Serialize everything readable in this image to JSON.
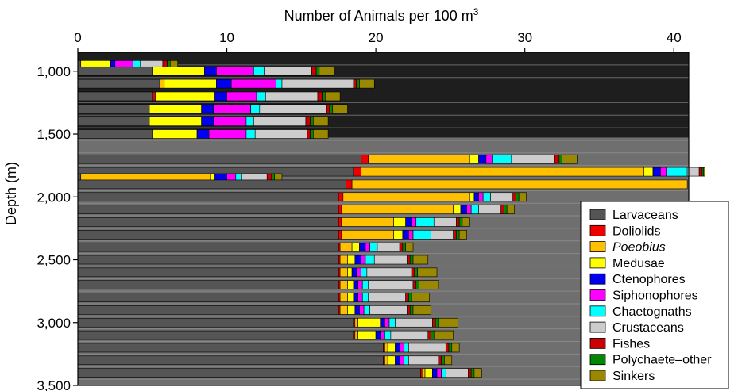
{
  "chart_data": {
    "type": "bar",
    "stacked": true,
    "orientation": "horizontal",
    "title": "",
    "xlabel": "Number of Animals per 100 m",
    "xlabel_superscript": "3",
    "ylabel": "Depth (m)",
    "xlim": [
      0,
      41
    ],
    "ylim": [
      3500,
      850
    ],
    "x_ticks": [
      0,
      10,
      20,
      30,
      40
    ],
    "y_ticks": [
      1000,
      1500,
      2000,
      2500,
      3000,
      3500
    ],
    "y_tick_labels": [
      "1,000",
      "1,500",
      "2,000",
      "2,500",
      "3,000",
      "3,500"
    ],
    "x_axis_position": "top",
    "legend_position": "bottom-right",
    "categories": [
      "Larvaceans",
      "Doliolids",
      "Poeobius",
      "Medusae",
      "Ctenophores",
      "Siphonophores",
      "Chaetognaths",
      "Crustaceans",
      "Fishes",
      "Polychaete–other",
      "Sinkers"
    ],
    "italic_categories": [
      "Poeobius"
    ],
    "colors": [
      "#555555",
      "#ee0000",
      "#ffc000",
      "#ffff00",
      "#0000ee",
      "#ff00ff",
      "#00ffff",
      "#cccccc",
      "#cc0000",
      "#008800",
      "#998800"
    ],
    "bars": [
      {
        "depth": 950,
        "values": [
          0.2,
          0,
          0,
          2.0,
          0.3,
          1.2,
          0.5,
          1.5,
          0.3,
          0.2,
          0.5
        ]
      },
      {
        "depth": 1000,
        "values": [
          5.0,
          0,
          0,
          3.5,
          0.8,
          2.5,
          0.7,
          3.2,
          0.3,
          0.2,
          1.0
        ]
      },
      {
        "depth": 1100,
        "values": [
          5.5,
          0,
          0.3,
          3.5,
          1.0,
          3.0,
          0.4,
          4.8,
          0.2,
          0.2,
          1.0
        ]
      },
      {
        "depth": 1200,
        "values": [
          5.0,
          0.2,
          0,
          4.0,
          0.8,
          2.0,
          0.6,
          3.5,
          0.3,
          0.2,
          1.0
        ]
      },
      {
        "depth": 1300,
        "values": [
          4.8,
          0,
          0,
          3.5,
          0.8,
          2.5,
          0.6,
          4.5,
          0.2,
          0.2,
          1.0
        ]
      },
      {
        "depth": 1400,
        "values": [
          4.8,
          0,
          0,
          3.5,
          0.8,
          2.2,
          0.5,
          3.5,
          0.3,
          0.2,
          1.0
        ]
      },
      {
        "depth": 1500,
        "values": [
          5.0,
          0,
          0,
          3.0,
          0.8,
          2.5,
          0.6,
          3.5,
          0.2,
          0.2,
          1.0
        ]
      },
      {
        "depth": 1700,
        "values": [
          19.0,
          0.5,
          6.8,
          0.6,
          0.5,
          0.4,
          1.3,
          2.9,
          0.3,
          0.2,
          1.0
        ]
      },
      {
        "depth": 1800,
        "values": [
          18.5,
          0.5,
          19.0,
          0.6,
          0.5,
          0.4,
          1.4,
          0.8,
          0.2,
          0.1,
          0.1
        ]
      },
      {
        "depth": 1850,
        "values": [
          0.2,
          0,
          8.7,
          0.3,
          0.8,
          0.6,
          0.4,
          1.7,
          0.3,
          0.2,
          0.5
        ]
      },
      {
        "depth": 1900,
        "values": [
          18.0,
          0.4,
          22.5,
          0,
          0,
          0,
          0,
          0,
          0,
          0,
          0
        ]
      },
      {
        "depth": 2000,
        "values": [
          17.5,
          0.3,
          8.5,
          0.3,
          0.3,
          0.3,
          0.5,
          1.5,
          0.2,
          0.2,
          0.5
        ]
      },
      {
        "depth": 2100,
        "values": [
          17.5,
          0.2,
          7.5,
          0.5,
          0.4,
          0.3,
          0.5,
          1.5,
          0.2,
          0.2,
          0.5
        ]
      },
      {
        "depth": 2200,
        "values": [
          17.5,
          0.2,
          3.5,
          0.8,
          0.4,
          0.3,
          1.2,
          1.5,
          0.2,
          0.2,
          0.5
        ]
      },
      {
        "depth": 2300,
        "values": [
          17.5,
          0.2,
          3.5,
          0.6,
          0.4,
          0.3,
          1.2,
          1.5,
          0.2,
          0.2,
          0.5
        ]
      },
      {
        "depth": 2400,
        "values": [
          17.5,
          0.1,
          0.8,
          0.5,
          0.4,
          0.3,
          0.5,
          1.5,
          0.2,
          0.2,
          0.5
        ]
      },
      {
        "depth": 2500,
        "values": [
          17.5,
          0.1,
          0.5,
          0.5,
          0.4,
          0.3,
          0.6,
          2.2,
          0.2,
          0.2,
          1.0
        ]
      },
      {
        "depth": 2600,
        "values": [
          17.5,
          0.1,
          0.5,
          0.3,
          0.3,
          0.3,
          0.4,
          3.0,
          0.2,
          0.2,
          1.3
        ]
      },
      {
        "depth": 2700,
        "values": [
          17.5,
          0.1,
          0.5,
          0.4,
          0.3,
          0.3,
          0.4,
          3.0,
          0.2,
          0.2,
          1.3
        ]
      },
      {
        "depth": 2800,
        "values": [
          17.5,
          0.1,
          0.5,
          0.4,
          0.3,
          0.3,
          0.4,
          2.5,
          0.2,
          0.2,
          1.2
        ]
      },
      {
        "depth": 2900,
        "values": [
          17.5,
          0.1,
          0.5,
          0.5,
          0.3,
          0.3,
          0.4,
          2.5,
          0.2,
          0.2,
          1.2
        ]
      },
      {
        "depth": 3000,
        "values": [
          18.5,
          0.1,
          0.2,
          1.5,
          0.3,
          0.3,
          0.4,
          2.5,
          0.2,
          0.2,
          1.3
        ]
      },
      {
        "depth": 3100,
        "values": [
          18.5,
          0.1,
          0.2,
          1.2,
          0.3,
          0.3,
          0.4,
          2.5,
          0.2,
          0.2,
          1.3
        ]
      },
      {
        "depth": 3200,
        "values": [
          20.5,
          0.1,
          0.2,
          0.5,
          0.3,
          0.3,
          0.3,
          2.5,
          0.2,
          0.2,
          0.5
        ]
      },
      {
        "depth": 3300,
        "values": [
          20.5,
          0.1,
          0.2,
          0.5,
          0.3,
          0.3,
          0.3,
          2.0,
          0.2,
          0.2,
          0.5
        ]
      },
      {
        "depth": 3400,
        "values": [
          23.0,
          0.1,
          0.2,
          0.5,
          0.3,
          0.3,
          0.3,
          1.5,
          0.2,
          0.2,
          0.5
        ]
      }
    ]
  }
}
